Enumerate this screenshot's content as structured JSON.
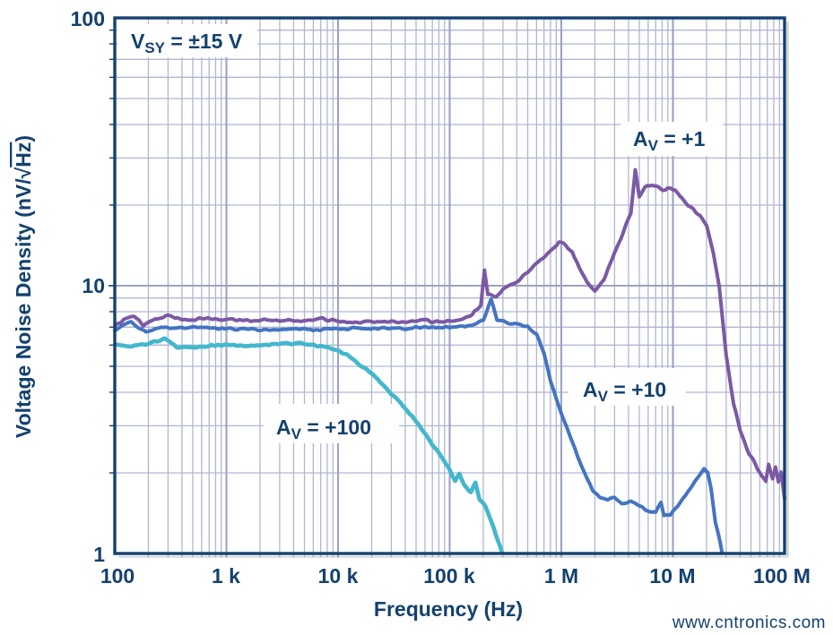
{
  "watermark": {
    "text": "www.cntronics.com",
    "color": "#c9ecb6"
  },
  "chart_data": {
    "type": "line",
    "title": "",
    "xlabel": "Frequency (Hz)",
    "ylabel": {
      "prefix": "Voltage Noise Density (nV/",
      "radical": "√",
      "overline": "Hz",
      "suffix": ")"
    },
    "x_scale": "log",
    "y_scale": "log",
    "xlim": [
      100,
      100000000
    ],
    "ylim": [
      1,
      100
    ],
    "grid": true,
    "x_ticks": [
      {
        "value": 100,
        "label": "100"
      },
      {
        "value": 1000,
        "label": "1 k"
      },
      {
        "value": 10000,
        "label": "10 k"
      },
      {
        "value": 100000,
        "label": "100 k"
      },
      {
        "value": 1000000,
        "label": "1 M"
      },
      {
        "value": 10000000,
        "label": "10 M"
      },
      {
        "value": 100000000,
        "label": "100 M"
      }
    ],
    "y_ticks": [
      {
        "value": 1,
        "label": "1"
      },
      {
        "value": 10,
        "label": "10"
      },
      {
        "value": 100,
        "label": "100"
      }
    ],
    "annotations": {
      "supply": {
        "main": "V",
        "sub": "SY",
        "rest": " = ±15 V"
      },
      "gain1": {
        "main": "A",
        "sub": "V",
        "rest": " = +1"
      },
      "gain10": {
        "main": "A",
        "sub": "V",
        "rest": " = +10"
      },
      "gain100": {
        "main": "A",
        "sub": "V",
        "rest": " = +100"
      }
    },
    "colors": {
      "axis": "#14416F",
      "grid_major": "#9aa3c4",
      "grid_minor": "#b0b6d0",
      "background": "#ffffff"
    },
    "series": [
      {
        "name": "AV = +1",
        "color": "#7b59a5",
        "points": [
          [
            100,
            7.0
          ],
          [
            120,
            7.5
          ],
          [
            150,
            7.7
          ],
          [
            180,
            7.1
          ],
          [
            230,
            7.5
          ],
          [
            300,
            7.7
          ],
          [
            400,
            7.5
          ],
          [
            600,
            7.5
          ],
          [
            900,
            7.5
          ],
          [
            1500,
            7.4
          ],
          [
            2500,
            7.5
          ],
          [
            4000,
            7.4
          ],
          [
            7000,
            7.5
          ],
          [
            10000,
            7.4
          ],
          [
            15000,
            7.3
          ],
          [
            25000,
            7.4
          ],
          [
            40000,
            7.3
          ],
          [
            60000,
            7.4
          ],
          [
            80000,
            7.3
          ],
          [
            100000,
            7.4
          ],
          [
            130000,
            7.5
          ],
          [
            160000,
            7.8
          ],
          [
            190000,
            8.5
          ],
          [
            205000,
            11.4
          ],
          [
            220000,
            9.3
          ],
          [
            260000,
            9.1
          ],
          [
            300000,
            9.7
          ],
          [
            400000,
            10.4
          ],
          [
            500000,
            11.3
          ],
          [
            650000,
            12.5
          ],
          [
            800000,
            13.4
          ],
          [
            950000,
            14.6
          ],
          [
            1050000,
            14.3
          ],
          [
            1250000,
            13.5
          ],
          [
            1450000,
            11.7
          ],
          [
            1700000,
            10.3
          ],
          [
            2000000,
            9.6
          ],
          [
            2400000,
            10.5
          ],
          [
            3000000,
            13.3
          ],
          [
            3600000,
            15.9
          ],
          [
            4200000,
            18.6
          ],
          [
            4600000,
            27.2
          ],
          [
            5000000,
            21.6
          ],
          [
            5600000,
            23.4
          ],
          [
            6500000,
            23.9
          ],
          [
            7500000,
            23.4
          ],
          [
            8500000,
            22.7
          ],
          [
            9500000,
            23.1
          ],
          [
            11000000,
            22.2
          ],
          [
            13000000,
            20.4
          ],
          [
            16000000,
            18.9
          ],
          [
            20000000,
            16.9
          ],
          [
            23000000,
            13.2
          ],
          [
            26000000,
            9.9
          ],
          [
            30000000,
            5.5
          ],
          [
            35000000,
            3.6
          ],
          [
            40000000,
            2.9
          ],
          [
            48000000,
            2.35
          ],
          [
            55000000,
            2.15
          ],
          [
            62000000,
            1.95
          ],
          [
            68000000,
            1.85
          ],
          [
            72000000,
            2.15
          ],
          [
            78000000,
            1.9
          ],
          [
            83000000,
            2.1
          ],
          [
            88000000,
            1.85
          ],
          [
            93000000,
            2.0
          ],
          [
            100000000,
            1.6
          ]
        ]
      },
      {
        "name": "AV = +10",
        "color": "#4474c3",
        "points": [
          [
            100,
            6.8
          ],
          [
            140,
            7.3
          ],
          [
            190,
            6.7
          ],
          [
            260,
            7.0
          ],
          [
            350,
            6.9
          ],
          [
            500,
            7.0
          ],
          [
            800,
            6.9
          ],
          [
            1200,
            6.9
          ],
          [
            2000,
            6.85
          ],
          [
            3500,
            6.9
          ],
          [
            6000,
            6.85
          ],
          [
            10000,
            6.9
          ],
          [
            18000,
            6.95
          ],
          [
            30000,
            6.9
          ],
          [
            60000,
            7.0
          ],
          [
            100000,
            7.0
          ],
          [
            150000,
            7.1
          ],
          [
            200000,
            7.4
          ],
          [
            235000,
            8.9
          ],
          [
            265000,
            7.5
          ],
          [
            320000,
            7.3
          ],
          [
            400000,
            7.2
          ],
          [
            500000,
            7.0
          ],
          [
            600000,
            6.6
          ],
          [
            700000,
            5.6
          ],
          [
            800000,
            4.4
          ],
          [
            900000,
            3.8
          ],
          [
            1000000,
            3.35
          ],
          [
            1200000,
            2.75
          ],
          [
            1400000,
            2.3
          ],
          [
            1650000,
            1.95
          ],
          [
            1900000,
            1.72
          ],
          [
            2200000,
            1.62
          ],
          [
            2600000,
            1.58
          ],
          [
            3000000,
            1.62
          ],
          [
            3500000,
            1.55
          ],
          [
            4200000,
            1.56
          ],
          [
            5000000,
            1.5
          ],
          [
            6000000,
            1.45
          ],
          [
            7000000,
            1.42
          ],
          [
            7800000,
            1.55
          ],
          [
            8300000,
            1.4
          ],
          [
            9500000,
            1.4
          ],
          [
            11000000,
            1.5
          ],
          [
            13000000,
            1.66
          ],
          [
            15000000,
            1.8
          ],
          [
            17000000,
            1.95
          ],
          [
            19000000,
            2.06
          ],
          [
            20500000,
            2.0
          ],
          [
            22000000,
            1.75
          ],
          [
            24000000,
            1.3
          ],
          [
            26500000,
            1.1
          ],
          [
            28500000,
            0.93
          ]
        ]
      },
      {
        "name": "AV = +100",
        "color": "#43b7cd",
        "points": [
          [
            100,
            6.0
          ],
          [
            140,
            5.9
          ],
          [
            200,
            6.1
          ],
          [
            280,
            6.35
          ],
          [
            360,
            5.85
          ],
          [
            500,
            5.9
          ],
          [
            700,
            5.95
          ],
          [
            1000,
            6.0
          ],
          [
            1600,
            5.95
          ],
          [
            2500,
            6.05
          ],
          [
            4000,
            6.1
          ],
          [
            6000,
            6.0
          ],
          [
            8000,
            5.9
          ],
          [
            10000,
            5.75
          ],
          [
            13000,
            5.4
          ],
          [
            16000,
            5.05
          ],
          [
            20000,
            4.7
          ],
          [
            26000,
            4.2
          ],
          [
            33000,
            3.8
          ],
          [
            42000,
            3.4
          ],
          [
            55000,
            2.95
          ],
          [
            70000,
            2.55
          ],
          [
            85000,
            2.3
          ],
          [
            100000,
            2.05
          ],
          [
            112000,
            1.85
          ],
          [
            122000,
            2.0
          ],
          [
            135000,
            1.8
          ],
          [
            155000,
            1.7
          ],
          [
            170000,
            1.85
          ],
          [
            185000,
            1.6
          ],
          [
            210000,
            1.5
          ],
          [
            240000,
            1.3
          ],
          [
            270000,
            1.12
          ],
          [
            300000,
            0.98
          ]
        ]
      }
    ]
  }
}
